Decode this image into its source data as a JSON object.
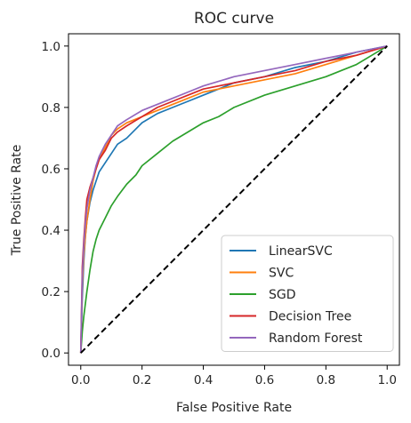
{
  "chart_data": {
    "type": "line",
    "title": "ROC curve",
    "xlabel": "False Positive Rate",
    "ylabel": "True Positive Rate",
    "xlim": [
      -0.04,
      1.04
    ],
    "ylim": [
      -0.04,
      1.04
    ],
    "xticks": [
      0.0,
      0.2,
      0.4,
      0.6,
      0.8,
      1.0
    ],
    "yticks": [
      0.0,
      0.2,
      0.4,
      0.6,
      0.8,
      1.0
    ],
    "xtick_labels": [
      "0.0",
      "0.2",
      "0.4",
      "0.6",
      "0.8",
      "1.0"
    ],
    "ytick_labels": [
      "0.0",
      "0.2",
      "0.4",
      "0.6",
      "0.8",
      "1.0"
    ],
    "grid": false,
    "legend_position": "lower-right",
    "diagonal": {
      "x": [
        0,
        1
      ],
      "y": [
        0,
        1
      ],
      "color": "#000000",
      "style": "dashed"
    },
    "series": [
      {
        "name": "LinearSVC",
        "color": "#1f77b4",
        "x": [
          0.0,
          0.005,
          0.01,
          0.015,
          0.02,
          0.03,
          0.04,
          0.05,
          0.06,
          0.08,
          0.1,
          0.12,
          0.15,
          0.18,
          0.2,
          0.25,
          0.3,
          0.35,
          0.4,
          0.45,
          0.5,
          0.6,
          0.7,
          0.8,
          0.9,
          1.0
        ],
        "y": [
          0.0,
          0.18,
          0.3,
          0.38,
          0.43,
          0.49,
          0.53,
          0.56,
          0.59,
          0.62,
          0.65,
          0.68,
          0.7,
          0.73,
          0.75,
          0.78,
          0.8,
          0.82,
          0.84,
          0.86,
          0.88,
          0.9,
          0.93,
          0.95,
          0.98,
          1.0
        ]
      },
      {
        "name": "SVC",
        "color": "#ff7f0e",
        "x": [
          0.0,
          0.005,
          0.01,
          0.015,
          0.02,
          0.03,
          0.04,
          0.05,
          0.06,
          0.08,
          0.1,
          0.12,
          0.15,
          0.2,
          0.25,
          0.3,
          0.35,
          0.4,
          0.5,
          0.6,
          0.7,
          0.8,
          0.9,
          1.0
        ],
        "y": [
          0.0,
          0.22,
          0.32,
          0.38,
          0.43,
          0.5,
          0.56,
          0.6,
          0.63,
          0.67,
          0.71,
          0.73,
          0.75,
          0.77,
          0.79,
          0.81,
          0.83,
          0.85,
          0.87,
          0.89,
          0.91,
          0.94,
          0.97,
          1.0
        ]
      },
      {
        "name": "SGD",
        "color": "#2ca02c",
        "x": [
          0.0,
          0.005,
          0.01,
          0.02,
          0.03,
          0.04,
          0.05,
          0.06,
          0.08,
          0.1,
          0.12,
          0.15,
          0.18,
          0.2,
          0.25,
          0.3,
          0.35,
          0.4,
          0.45,
          0.5,
          0.6,
          0.7,
          0.8,
          0.9,
          0.95,
          1.0
        ],
        "y": [
          0.0,
          0.07,
          0.12,
          0.2,
          0.27,
          0.33,
          0.37,
          0.4,
          0.44,
          0.48,
          0.51,
          0.55,
          0.58,
          0.61,
          0.65,
          0.69,
          0.72,
          0.75,
          0.77,
          0.8,
          0.84,
          0.87,
          0.9,
          0.94,
          0.97,
          1.0
        ]
      },
      {
        "name": "Decision Tree",
        "color": "#d62728",
        "x": [
          0.0,
          0.005,
          0.01,
          0.015,
          0.02,
          0.03,
          0.04,
          0.05,
          0.06,
          0.08,
          0.1,
          0.12,
          0.15,
          0.2,
          0.25,
          0.3,
          0.35,
          0.4,
          0.5,
          0.6,
          0.7,
          0.8,
          0.9,
          1.0
        ],
        "y": [
          0.0,
          0.28,
          0.37,
          0.44,
          0.5,
          0.54,
          0.57,
          0.6,
          0.63,
          0.66,
          0.7,
          0.72,
          0.74,
          0.77,
          0.8,
          0.82,
          0.84,
          0.86,
          0.88,
          0.9,
          0.92,
          0.95,
          0.97,
          1.0
        ]
      },
      {
        "name": "Random Forest",
        "color": "#9467bd",
        "x": [
          0.0,
          0.005,
          0.01,
          0.015,
          0.02,
          0.03,
          0.04,
          0.05,
          0.06,
          0.08,
          0.1,
          0.12,
          0.15,
          0.2,
          0.25,
          0.3,
          0.35,
          0.4,
          0.5,
          0.6,
          0.7,
          0.8,
          0.9,
          1.0
        ],
        "y": [
          0.0,
          0.25,
          0.35,
          0.42,
          0.47,
          0.53,
          0.57,
          0.61,
          0.64,
          0.68,
          0.71,
          0.74,
          0.76,
          0.79,
          0.81,
          0.83,
          0.85,
          0.87,
          0.9,
          0.92,
          0.94,
          0.96,
          0.98,
          1.0
        ]
      }
    ]
  }
}
